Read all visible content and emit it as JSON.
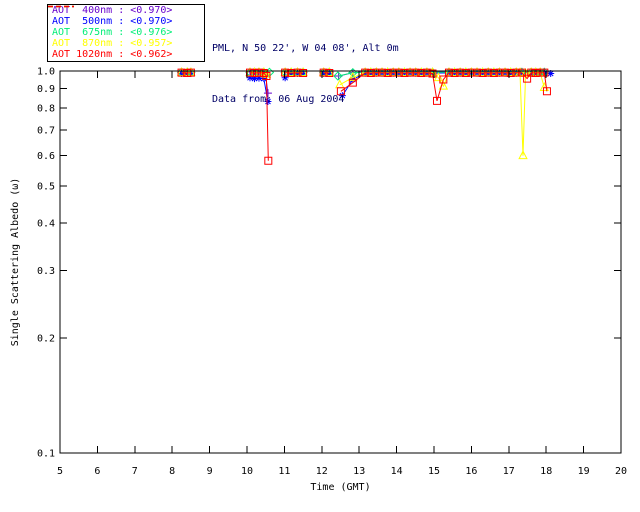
{
  "header": {
    "line1": "PML, N 50 22', W 04 08', Alt 0m",
    "line2": "Data from: 06 Aug 2004",
    "color": "#000066"
  },
  "legend": {
    "items": [
      {
        "label": "AOT  400nm : <0.970>",
        "color": "#6600CC"
      },
      {
        "label": "AOT  500nm : <0.970>",
        "color": "#0000FF"
      },
      {
        "label": "AOT  675nm : <0.976>",
        "color": "#00EE77"
      },
      {
        "label": "AOT  870nm : <0.957>",
        "color": "#FFFF00"
      },
      {
        "label": "AOT 1020nm : <0.962>",
        "color": "#FF0000"
      }
    ]
  },
  "chart_data": {
    "type": "line",
    "title": "",
    "xlabel": "Time (GMT)",
    "ylabel": "Single Scattering Albedo (ω)",
    "xlim": [
      5,
      20
    ],
    "ylim": [
      0.1,
      1.0
    ],
    "yscale": "log",
    "grid": false,
    "axis_color": "#000000",
    "xticks": [
      5,
      6,
      7,
      8,
      9,
      10,
      11,
      12,
      13,
      14,
      15,
      16,
      17,
      18,
      19,
      20
    ],
    "yticks": [
      1.0,
      0.9,
      0.8,
      0.7,
      0.6,
      0.5,
      0.4,
      0.3,
      0.2,
      0.1
    ],
    "ytick_labels": [
      "1.0",
      "0.9",
      "0.8",
      "0.7",
      "0.6",
      "0.5",
      "0.4",
      "0.3",
      "0.2",
      "0.1"
    ],
    "legend_position": "top-left-outside",
    "series": [
      {
        "name": "AOT 400nm",
        "mean": "<0.970>",
        "color": "#6600CC",
        "marker": "plus",
        "segments": [
          [
            [
              8.25,
              0.995
            ],
            [
              8.4,
              0.995
            ],
            [
              8.5,
              0.995
            ]
          ],
          [
            [
              10.08,
              0.995
            ],
            [
              10.2,
              0.995
            ],
            [
              10.32,
              0.995
            ],
            [
              10.45,
              0.995
            ],
            [
              10.5,
              0.97
            ],
            [
              10.56,
              0.875
            ]
          ],
          [
            [
              11.02,
              0.995
            ],
            [
              11.18,
              0.995
            ],
            [
              11.35,
              0.995
            ],
            [
              11.5,
              0.995
            ]
          ],
          [
            [
              12.05,
              0.995
            ],
            [
              12.2,
              0.995
            ]
          ],
          [
            [
              12.45,
              0.97
            ],
            [
              12.83,
              0.99
            ],
            [
              13.16,
              0.995
            ],
            [
              13.31,
              0.995
            ],
            [
              13.46,
              0.995
            ],
            [
              13.61,
              0.995
            ],
            [
              13.76,
              0.995
            ],
            [
              13.91,
              0.995
            ],
            [
              14.06,
              0.995
            ],
            [
              14.21,
              0.995
            ],
            [
              14.36,
              0.995
            ],
            [
              14.51,
              0.995
            ],
            [
              14.66,
              0.995
            ],
            [
              14.81,
              0.995
            ],
            [
              14.96,
              0.995
            ],
            [
              15.4,
              0.995
            ],
            [
              15.55,
              0.995
            ],
            [
              15.7,
              0.995
            ],
            [
              15.85,
              0.995
            ],
            [
              16.0,
              0.995
            ],
            [
              16.15,
              0.995
            ],
            [
              16.3,
              0.995
            ],
            [
              16.45,
              0.995
            ],
            [
              16.6,
              0.995
            ],
            [
              16.75,
              0.995
            ],
            [
              16.9,
              0.995
            ],
            [
              17.05,
              0.995
            ],
            [
              17.2,
              0.995
            ],
            [
              17.35,
              0.995
            ],
            [
              17.6,
              0.995
            ],
            [
              17.72,
              0.995
            ],
            [
              17.84,
              0.995
            ],
            [
              17.95,
              0.995
            ]
          ]
        ]
      },
      {
        "name": "AOT 500nm",
        "mean": "<0.970>",
        "color": "#0000FF",
        "marker": "asterisk",
        "segments": [
          [
            [
              8.25,
              0.985
            ],
            [
              8.4,
              0.985
            ],
            [
              8.5,
              0.985
            ]
          ],
          [
            [
              10.08,
              0.96
            ],
            [
              10.2,
              0.955
            ],
            [
              10.32,
              0.958
            ],
            [
              10.45,
              0.955
            ],
            [
              10.56,
              0.832
            ]
          ],
          [
            [
              11.02,
              0.96
            ],
            [
              11.18,
              0.985
            ],
            [
              11.35,
              0.985
            ],
            [
              11.5,
              0.985
            ]
          ],
          [
            [
              12.05,
              0.985
            ],
            [
              12.2,
              0.985
            ]
          ],
          [
            [
              12.55,
              0.862
            ],
            [
              12.83,
              0.95
            ],
            [
              13.16,
              0.988
            ],
            [
              13.31,
              0.988
            ],
            [
              13.46,
              0.988
            ],
            [
              13.61,
              0.988
            ],
            [
              13.76,
              0.988
            ],
            [
              13.91,
              0.988
            ],
            [
              14.06,
              0.988
            ],
            [
              14.21,
              0.988
            ],
            [
              14.36,
              0.988
            ],
            [
              14.51,
              0.988
            ],
            [
              14.66,
              0.988
            ],
            [
              14.81,
              0.988
            ],
            [
              14.96,
              0.988
            ],
            [
              15.4,
              0.988
            ],
            [
              15.55,
              0.988
            ],
            [
              15.7,
              0.988
            ],
            [
              15.85,
              0.988
            ],
            [
              16.0,
              0.988
            ],
            [
              16.15,
              0.988
            ],
            [
              16.3,
              0.988
            ],
            [
              16.45,
              0.988
            ],
            [
              16.6,
              0.988
            ],
            [
              16.75,
              0.988
            ],
            [
              16.9,
              0.988
            ],
            [
              17.05,
              0.988
            ],
            [
              17.2,
              0.988
            ],
            [
              17.35,
              0.988
            ],
            [
              17.6,
              0.988
            ],
            [
              17.72,
              0.988
            ],
            [
              17.84,
              0.988
            ],
            [
              17.95,
              0.988
            ],
            [
              18.12,
              0.985
            ]
          ]
        ]
      },
      {
        "name": "AOT 675nm",
        "mean": "<0.976>",
        "color": "#00EE77",
        "marker": "diamond",
        "segments": [
          [
            [
              8.25,
              0.992
            ],
            [
              8.4,
              0.992
            ],
            [
              8.5,
              0.992
            ]
          ],
          [
            [
              10.08,
              0.992
            ],
            [
              10.2,
              0.992
            ],
            [
              10.32,
              0.992
            ],
            [
              10.45,
              0.992
            ],
            [
              10.6,
              0.992
            ]
          ],
          [
            [
              11.02,
              0.992
            ],
            [
              11.18,
              0.992
            ],
            [
              11.35,
              0.992
            ],
            [
              11.5,
              0.992
            ]
          ],
          [
            [
              12.05,
              0.992
            ],
            [
              12.2,
              0.992
            ]
          ],
          [
            [
              12.43,
              0.97
            ],
            [
              12.83,
              0.99
            ],
            [
              13.16,
              0.992
            ],
            [
              13.31,
              0.992
            ],
            [
              13.46,
              0.992
            ],
            [
              13.61,
              0.992
            ],
            [
              13.76,
              0.992
            ],
            [
              13.91,
              0.992
            ],
            [
              14.06,
              0.992
            ],
            [
              14.21,
              0.992
            ],
            [
              14.36,
              0.992
            ],
            [
              14.51,
              0.992
            ],
            [
              14.66,
              0.992
            ],
            [
              14.81,
              0.992
            ],
            [
              14.96,
              0.992
            ],
            [
              15.4,
              0.992
            ],
            [
              15.55,
              0.992
            ],
            [
              15.7,
              0.992
            ],
            [
              15.85,
              0.992
            ],
            [
              16.0,
              0.992
            ],
            [
              16.15,
              0.992
            ],
            [
              16.3,
              0.992
            ],
            [
              16.45,
              0.992
            ],
            [
              16.6,
              0.992
            ],
            [
              16.75,
              0.992
            ],
            [
              16.9,
              0.992
            ],
            [
              17.05,
              0.992
            ],
            [
              17.2,
              0.992
            ],
            [
              17.35,
              0.992
            ],
            [
              17.6,
              0.992
            ],
            [
              17.72,
              0.992
            ],
            [
              17.84,
              0.992
            ],
            [
              17.95,
              0.992
            ]
          ]
        ]
      },
      {
        "name": "AOT 870nm",
        "mean": "<0.957>",
        "color": "#FFFF00",
        "marker": "triangle",
        "segments": [
          [
            [
              8.25,
              0.99
            ],
            [
              8.4,
              0.99
            ],
            [
              8.5,
              0.99
            ]
          ],
          [
            [
              10.08,
              0.99
            ],
            [
              10.2,
              0.99
            ],
            [
              10.32,
              0.99
            ],
            [
              10.45,
              0.99
            ],
            [
              10.52,
              0.98
            ]
          ],
          [
            [
              11.02,
              0.99
            ],
            [
              11.18,
              0.99
            ],
            [
              11.35,
              0.99
            ],
            [
              11.5,
              0.99
            ]
          ],
          [
            [
              12.05,
              0.99
            ],
            [
              12.2,
              0.99
            ]
          ],
          [
            [
              12.48,
              0.92
            ],
            [
              12.83,
              0.962
            ],
            [
              13.16,
              0.99
            ],
            [
              13.31,
              0.99
            ],
            [
              13.46,
              0.99
            ],
            [
              13.61,
              0.99
            ],
            [
              13.76,
              0.99
            ],
            [
              13.91,
              0.99
            ],
            [
              14.06,
              0.99
            ],
            [
              14.21,
              0.99
            ],
            [
              14.36,
              0.99
            ],
            [
              14.51,
              0.99
            ],
            [
              14.66,
              0.99
            ],
            [
              14.81,
              0.99
            ],
            [
              14.96,
              0.99
            ],
            [
              15.12,
              0.96
            ],
            [
              15.25,
              0.912
            ],
            [
              15.4,
              0.99
            ],
            [
              15.55,
              0.99
            ],
            [
              15.7,
              0.99
            ],
            [
              15.85,
              0.99
            ],
            [
              16.0,
              0.99
            ],
            [
              16.15,
              0.99
            ],
            [
              16.3,
              0.99
            ],
            [
              16.45,
              0.99
            ],
            [
              16.6,
              0.99
            ],
            [
              16.75,
              0.99
            ],
            [
              16.9,
              0.99
            ],
            [
              17.05,
              0.99
            ],
            [
              17.2,
              0.99
            ],
            [
              17.3,
              0.99
            ],
            [
              17.38,
              0.6
            ],
            [
              17.45,
              0.985
            ],
            [
              17.6,
              0.99
            ],
            [
              17.72,
              0.99
            ],
            [
              17.84,
              0.99
            ],
            [
              17.95,
              0.905
            ]
          ]
        ]
      },
      {
        "name": "AOT 1020nm",
        "mean": "<0.962>",
        "color": "#FF0000",
        "marker": "square",
        "segments": [
          [
            [
              8.25,
              0.99
            ],
            [
              8.4,
              0.988
            ],
            [
              8.5,
              0.99
            ]
          ],
          [
            [
              10.08,
              0.99
            ],
            [
              10.2,
              0.988
            ],
            [
              10.32,
              0.99
            ],
            [
              10.45,
              0.988
            ],
            [
              10.52,
              0.97
            ],
            [
              10.57,
              0.582
            ]
          ],
          [
            [
              11.02,
              0.99
            ],
            [
              11.18,
              0.988
            ],
            [
              11.35,
              0.99
            ],
            [
              11.5,
              0.988
            ]
          ],
          [
            [
              12.05,
              0.99
            ],
            [
              12.2,
              0.988
            ]
          ],
          [
            [
              12.51,
              0.885
            ],
            [
              12.83,
              0.932
            ],
            [
              13.16,
              0.99
            ],
            [
              13.31,
              0.988
            ],
            [
              13.46,
              0.99
            ],
            [
              13.61,
              0.99
            ],
            [
              13.76,
              0.988
            ],
            [
              13.91,
              0.99
            ],
            [
              14.06,
              0.99
            ],
            [
              14.21,
              0.988
            ],
            [
              14.36,
              0.99
            ],
            [
              14.51,
              0.99
            ],
            [
              14.66,
              0.988
            ],
            [
              14.81,
              0.99
            ],
            [
              14.96,
              0.985
            ],
            [
              15.08,
              0.835
            ],
            [
              15.25,
              0.95
            ],
            [
              15.4,
              0.99
            ],
            [
              15.55,
              0.988
            ],
            [
              15.7,
              0.99
            ],
            [
              15.85,
              0.988
            ],
            [
              16.0,
              0.99
            ],
            [
              16.15,
              0.99
            ],
            [
              16.3,
              0.988
            ],
            [
              16.45,
              0.99
            ],
            [
              16.6,
              0.988
            ],
            [
              16.75,
              0.99
            ],
            [
              16.9,
              0.99
            ],
            [
              17.05,
              0.988
            ],
            [
              17.2,
              0.99
            ],
            [
              17.35,
              0.99
            ],
            [
              17.49,
              0.955
            ],
            [
              17.6,
              0.99
            ],
            [
              17.72,
              0.988
            ],
            [
              17.84,
              0.99
            ],
            [
              17.95,
              0.99
            ],
            [
              18.02,
              0.885
            ]
          ]
        ]
      }
    ]
  }
}
